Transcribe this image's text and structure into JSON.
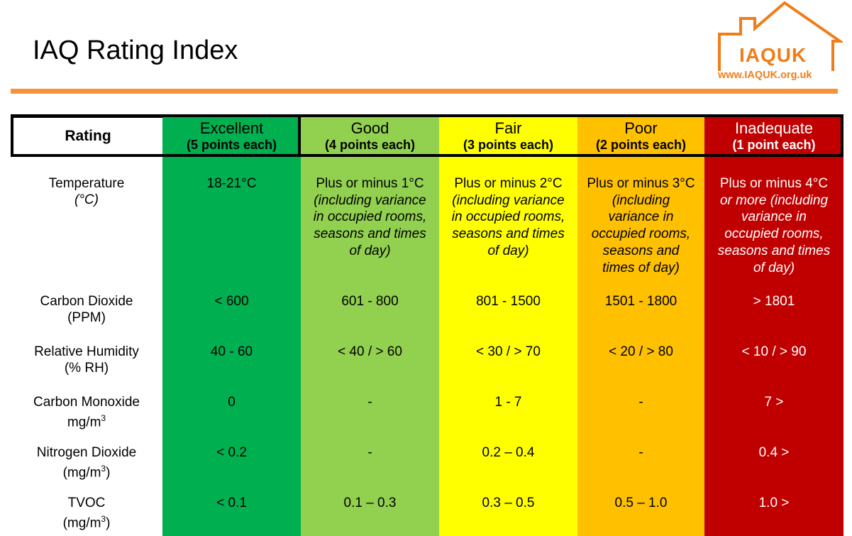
{
  "page": {
    "title": "IAQ Rating Index",
    "accent": "#f7923a"
  },
  "logo": {
    "brand": "IAQUK",
    "url": "www.IAQUK.org.uk",
    "color": "#f07d1a"
  },
  "table": {
    "rating_label": "Rating",
    "columns": [
      {
        "name": "Excellent",
        "points": "(5 points each)",
        "color": "#00b050",
        "text_color": "#000000"
      },
      {
        "name": "Good",
        "points": "(4 points each)",
        "color": "#92d050",
        "text_color": "#000000"
      },
      {
        "name": "Fair",
        "points": "(3 points each)",
        "color": "#ffff00",
        "text_color": "#000000"
      },
      {
        "name": "Poor",
        "points": "(2 points each)",
        "color": "#ffc000",
        "text_color": "#000000"
      },
      {
        "name": "Inadequate",
        "points": "(1 point each)",
        "color": "#c00000",
        "text_color": "#ffffff"
      }
    ],
    "rows": [
      {
        "label_line1": "Temperature",
        "label_line2": "(°C)",
        "cells": [
          {
            "plain": "18-21°C",
            "italic": ""
          },
          {
            "plain": "Plus or minus 1°C",
            "italic": "(including variance in occupied rooms, seasons and times of day)"
          },
          {
            "plain": "Plus or minus 2°C",
            "italic": "(including variance in occupied rooms, seasons and times of day)"
          },
          {
            "plain": "Plus or minus 3°C ",
            "italic": "(including variance in occupied rooms, seasons and times of day)"
          },
          {
            "plain": "Plus or minus 4°C",
            "italic": "or more (including variance in occupied rooms, seasons and times of day)"
          }
        ]
      },
      {
        "label_line1": "Carbon Dioxide",
        "label_line2": "(PPM)",
        "cells": [
          "< 600",
          "601 - 800",
          "801 - 1500",
          "1501 - 1800",
          "> 1801"
        ]
      },
      {
        "label_line1": "Relative Humidity",
        "label_line2": "(% RH)",
        "cells": [
          "40 - 60",
          "< 40 /  > 60",
          "< 30 /  > 70",
          "< 20 /  > 80",
          "< 10 /  > 90"
        ]
      },
      {
        "label_line1": "Carbon Monoxide",
        "label_line2": "mg/m",
        "label_sup": "3",
        "label_close": "",
        "cells": [
          "0",
          "-",
          "1 - 7",
          "-",
          "7 >"
        ]
      },
      {
        "label_line1": "Nitrogen Dioxide",
        "label_line2": "(mg/m",
        "label_sup": "3",
        "label_close": ")",
        "cells": [
          "< 0.2",
          "-",
          "0.2 – 0.4",
          "-",
          "0.4 >"
        ]
      },
      {
        "label_line1": "TVOC",
        "label_line2": "(mg/m",
        "label_sup": "3",
        "label_close": ")",
        "cells": [
          "< 0.1",
          "0.1 – 0.3",
          "0.3 – 0.5",
          "0.5 – 1.0",
          "1.0 >"
        ]
      }
    ]
  }
}
